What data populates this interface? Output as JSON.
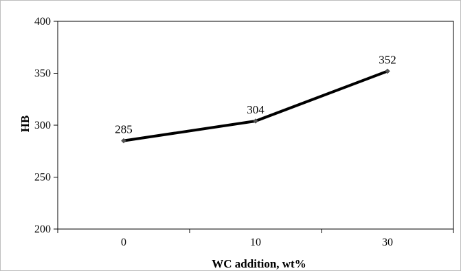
{
  "chart_data": {
    "type": "line",
    "title": "",
    "xlabel": "WC  addition, wt%",
    "ylabel": "HB",
    "categories": [
      "0",
      "10",
      "30"
    ],
    "series": [
      {
        "values": [
          285,
          304,
          352
        ],
        "color": "#000000"
      }
    ],
    "data_labels": [
      "285",
      "304",
      "352"
    ],
    "ylim": [
      200,
      400
    ],
    "yticks": [
      200,
      250,
      300,
      350,
      400
    ],
    "grid": false,
    "legend": "none"
  }
}
